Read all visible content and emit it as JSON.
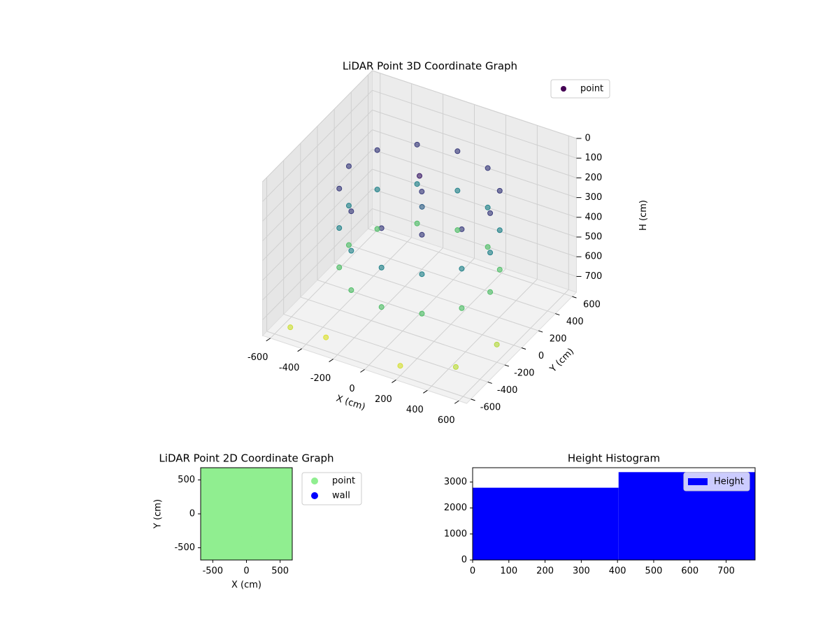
{
  "chart_data": [
    {
      "type": "scatter3d",
      "title": "LiDAR Point 3D Coordinate Graph",
      "xlabel": "X (cm)",
      "ylabel": "Y (cm)",
      "zlabel": "H (cm)",
      "xlim": [
        -650,
        650
      ],
      "ylim": [
        -650,
        650
      ],
      "zlim": [
        780,
        0
      ],
      "xticks": [
        -600,
        -400,
        -200,
        0,
        200,
        400,
        600
      ],
      "yticks": [
        -600,
        -400,
        -200,
        0,
        200,
        400,
        600
      ],
      "zticks": [
        0,
        100,
        200,
        300,
        400,
        500,
        600,
        700
      ],
      "colormap": "viridis",
      "grid": true,
      "legend": "upper right",
      "series": [
        {
          "name": "point",
          "color": "#440154",
          "x": [
            450,
            390,
            225,
            0,
            -225,
            -390,
            -450,
            -390,
            -225,
            0,
            225,
            390,
            450,
            390,
            225,
            0,
            -225,
            -390,
            -450,
            -390,
            -225,
            0,
            225,
            390,
            450,
            390,
            225,
            0,
            -225,
            -390,
            -450,
            -390,
            -225,
            0,
            225,
            390,
            0,
            20,
            0,
            -500,
            -300,
            200,
            500,
            600
          ],
          "y": [
            0,
            225,
            390,
            450,
            390,
            225,
            0,
            -225,
            -390,
            -450,
            -390,
            -225,
            0,
            225,
            390,
            450,
            390,
            225,
            0,
            -225,
            -390,
            -450,
            -390,
            -225,
            0,
            225,
            390,
            450,
            390,
            225,
            0,
            -225,
            -390,
            -450,
            -390,
            -225,
            0,
            -10,
            30,
            -600,
            -550,
            -600,
            -500,
            -200
          ],
          "z": [
            150,
            150,
            150,
            150,
            150,
            150,
            150,
            150,
            150,
            150,
            150,
            150,
            350,
            350,
            350,
            350,
            350,
            350,
            350,
            350,
            350,
            350,
            350,
            350,
            550,
            550,
            550,
            550,
            550,
            550,
            550,
            550,
            550,
            550,
            550,
            550,
            80,
            150,
            250,
            720,
            740,
            730,
            700,
            690
          ]
        }
      ]
    },
    {
      "type": "scatter",
      "title": "LiDAR Point 2D Coordinate Graph",
      "xlabel": "X (cm)",
      "ylabel": "Y (cm)",
      "xlim": [
        -680,
        680
      ],
      "ylim": [
        -680,
        680
      ],
      "xticks": [
        -500,
        0,
        500
      ],
      "yticks": [
        -500,
        0,
        500
      ],
      "legend": "outside right",
      "series": [
        {
          "name": "point",
          "color": "#90ee90",
          "x": [
            -600,
            -400,
            -200,
            0,
            200,
            400,
            600,
            -600,
            -400,
            -200,
            0,
            200,
            400,
            600,
            -600,
            -400,
            -200,
            0,
            200,
            400,
            600,
            -600,
            -400,
            -200,
            0,
            200,
            400,
            600,
            -600,
            -400,
            -200,
            0,
            200,
            400,
            600,
            -600,
            -400,
            -200,
            0,
            200,
            400,
            600,
            -600,
            -400,
            -200,
            0,
            200,
            400,
            600
          ],
          "y": [
            -600,
            -600,
            -600,
            -600,
            -600,
            -600,
            -600,
            -400,
            -400,
            -400,
            -400,
            -400,
            -400,
            -400,
            -200,
            -200,
            -200,
            -200,
            -200,
            -200,
            -200,
            0,
            0,
            0,
            0,
            0,
            0,
            0,
            200,
            200,
            200,
            200,
            200,
            200,
            200,
            400,
            400,
            400,
            400,
            400,
            400,
            400,
            600,
            600,
            600,
            600,
            600,
            600,
            600
          ]
        },
        {
          "name": "wall",
          "color": "#0000ff",
          "x": [],
          "y": []
        }
      ]
    },
    {
      "type": "histogram",
      "title": "Height Histogram",
      "xlim": [
        0,
        780
      ],
      "ylim": [
        0,
        3550
      ],
      "xticks": [
        0,
        100,
        200,
        300,
        400,
        500,
        600,
        700
      ],
      "yticks": [
        0,
        1000,
        2000,
        3000
      ],
      "legend": "upper right",
      "series": [
        {
          "name": "Height",
          "color": "#0000ff",
          "bins": [
            0,
            403,
            780
          ],
          "counts": [
            2780,
            3380
          ]
        }
      ]
    }
  ]
}
